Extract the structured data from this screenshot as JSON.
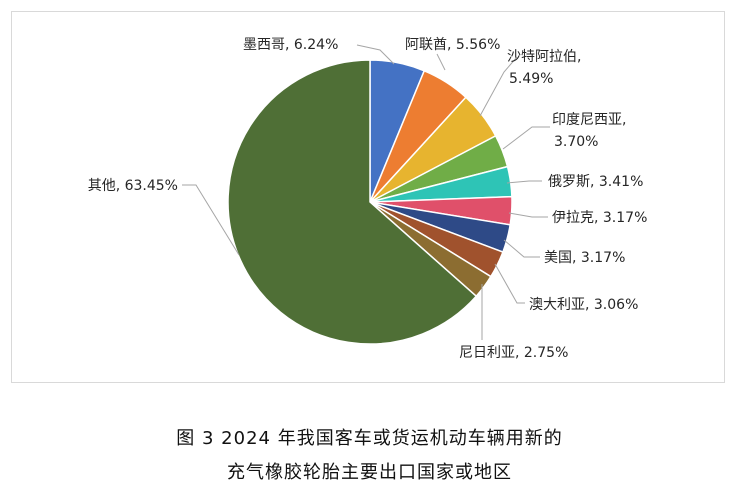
{
  "figure": {
    "caption_line_1": "图 3  2024 年我国客车或货运机动车辆用新的",
    "caption_line_2": "充气橡胶轮胎主要出口国家或地区"
  },
  "chart_data": {
    "type": "pie",
    "title": "",
    "start_angle_deg": 0,
    "direction": "clockwise",
    "slices": [
      {
        "name": "墨西哥",
        "value": 6.24,
        "value_label": "6.24%",
        "color": "#4472c4"
      },
      {
        "name": "阿联酋",
        "value": 5.56,
        "value_label": "5.56%",
        "color": "#ed7d31"
      },
      {
        "name": "沙特阿拉伯",
        "value": 5.49,
        "value_label": "5.49%",
        "color": "#e7b42f"
      },
      {
        "name": "印度尼西亚",
        "value": 3.7,
        "value_label": "3.70%",
        "color": "#70ad47"
      },
      {
        "name": "俄罗斯",
        "value": 3.41,
        "value_label": "3.41%",
        "color": "#2ec4b6"
      },
      {
        "name": "伊拉克",
        "value": 3.17,
        "value_label": "3.17%",
        "color": "#e0506a"
      },
      {
        "name": "美国",
        "value": 3.17,
        "value_label": "3.17%",
        "color": "#2e4a87"
      },
      {
        "name": "澳大利亚",
        "value": 3.06,
        "value_label": "3.06%",
        "color": "#a0522d"
      },
      {
        "name": "尼日利亚",
        "value": 2.75,
        "value_label": "2.75%",
        "color": "#8c6d31"
      },
      {
        "name": "其他",
        "value": 63.45,
        "value_label": "63.45%",
        "color": "#4f6f36"
      }
    ]
  }
}
